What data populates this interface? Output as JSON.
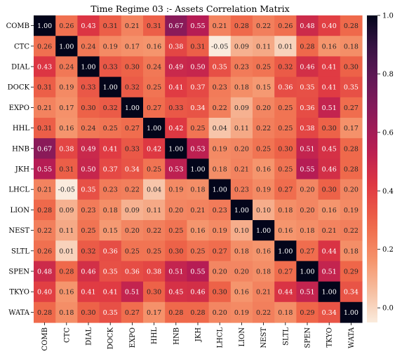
{
  "chart_data": {
    "type": "heatmap",
    "title": "Time Regime 03 :- Assets Correlation Matrix",
    "rows": [
      "COMB",
      "CTC",
      "DIAL",
      "DOCK",
      "EXPO",
      "HHL",
      "HNB",
      "JKH",
      "LHCL",
      "LION",
      "NEST",
      "SLTL",
      "SPEN",
      "TKYO",
      "WATA"
    ],
    "cols": [
      "COMB",
      "CTC",
      "DIAL",
      "DOCK",
      "EXPO",
      "HHL",
      "HNB",
      "JKH",
      "LHCL",
      "LION",
      "NEST",
      "SLTL",
      "SPEN",
      "TKYO",
      "WATA"
    ],
    "values": [
      [
        1.0,
        0.26,
        0.43,
        0.31,
        0.21,
        0.31,
        0.67,
        0.55,
        0.21,
        0.28,
        0.22,
        0.26,
        0.48,
        0.4,
        0.28
      ],
      [
        0.26,
        1.0,
        0.24,
        0.19,
        0.17,
        0.16,
        0.38,
        0.31,
        -0.05,
        0.09,
        0.11,
        0.01,
        0.28,
        0.16,
        0.18
      ],
      [
        0.43,
        0.24,
        1.0,
        0.33,
        0.3,
        0.24,
        0.49,
        0.5,
        0.35,
        0.23,
        0.25,
        0.32,
        0.46,
        0.41,
        0.3
      ],
      [
        0.31,
        0.19,
        0.33,
        1.0,
        0.32,
        0.25,
        0.41,
        0.37,
        0.23,
        0.18,
        0.15,
        0.36,
        0.35,
        0.41,
        0.35
      ],
      [
        0.21,
        0.17,
        0.3,
        0.32,
        1.0,
        0.27,
        0.33,
        0.34,
        0.22,
        0.09,
        0.2,
        0.25,
        0.36,
        0.51,
        0.27
      ],
      [
        0.31,
        0.16,
        0.24,
        0.25,
        0.27,
        1.0,
        0.42,
        0.25,
        0.04,
        0.11,
        0.22,
        0.25,
        0.38,
        0.3,
        0.17
      ],
      [
        0.67,
        0.38,
        0.49,
        0.41,
        0.33,
        0.42,
        1.0,
        0.53,
        0.19,
        0.2,
        0.25,
        0.3,
        0.51,
        0.45,
        0.28
      ],
      [
        0.55,
        0.31,
        0.5,
        0.37,
        0.34,
        0.25,
        0.53,
        1.0,
        0.18,
        0.21,
        0.16,
        0.25,
        0.55,
        0.46,
        0.28
      ],
      [
        0.21,
        -0.05,
        0.35,
        0.23,
        0.22,
        0.04,
        0.19,
        0.18,
        1.0,
        0.23,
        0.19,
        0.27,
        0.2,
        0.3,
        0.2
      ],
      [
        0.28,
        0.09,
        0.23,
        0.18,
        0.09,
        0.11,
        0.2,
        0.21,
        0.23,
        1.0,
        0.1,
        0.18,
        0.2,
        0.16,
        0.19
      ],
      [
        0.22,
        0.11,
        0.25,
        0.15,
        0.2,
        0.22,
        0.25,
        0.16,
        0.19,
        0.1,
        1.0,
        0.16,
        0.18,
        0.21,
        0.22
      ],
      [
        0.26,
        0.01,
        0.32,
        0.36,
        0.25,
        0.25,
        0.3,
        0.25,
        0.27,
        0.18,
        0.16,
        1.0,
        0.27,
        0.44,
        0.18
      ],
      [
        0.48,
        0.28,
        0.46,
        0.35,
        0.36,
        0.38,
        0.51,
        0.55,
        0.2,
        0.2,
        0.18,
        0.27,
        1.0,
        0.51,
        0.29
      ],
      [
        0.4,
        0.16,
        0.41,
        0.41,
        0.51,
        0.3,
        0.45,
        0.46,
        0.3,
        0.16,
        0.21,
        0.44,
        0.51,
        1.0,
        0.34
      ],
      [
        0.28,
        0.18,
        0.3,
        0.35,
        0.27,
        0.17,
        0.28,
        0.28,
        0.2,
        0.19,
        0.22,
        0.18,
        0.29,
        0.34,
        1.0
      ]
    ],
    "colorbar": {
      "min": -0.05,
      "max": 1.0,
      "ticks": [
        0.0,
        0.2,
        0.4,
        0.6,
        0.8,
        1.0
      ],
      "tick_labels": [
        "0.0",
        "0.2",
        "0.4",
        "0.6",
        "0.8",
        "1.0"
      ],
      "colormap": "rocket_r"
    }
  }
}
